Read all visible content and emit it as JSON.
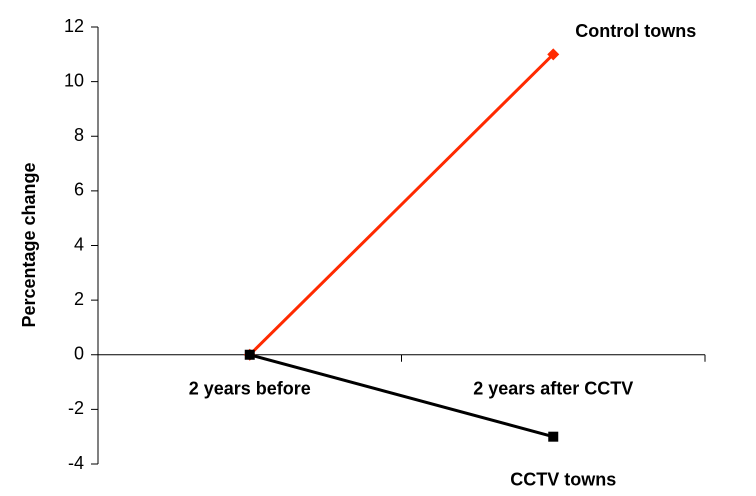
{
  "chart_data": {
    "type": "line",
    "y_label": "Percentage change",
    "categories": [
      "2 years before",
      "2 years after CCTV"
    ],
    "series": [
      {
        "name": "Control towns",
        "color": "#ff2a00",
        "marker": "diamond",
        "values": [
          0,
          11
        ]
      },
      {
        "name": "CCTV towns",
        "color": "#000000",
        "marker": "square",
        "values": [
          0,
          -3
        ]
      }
    ],
    "ylim": [
      -4,
      12
    ],
    "yticks": [
      -4,
      -2,
      0,
      2,
      4,
      6,
      8,
      10,
      12
    ],
    "grid": false
  }
}
